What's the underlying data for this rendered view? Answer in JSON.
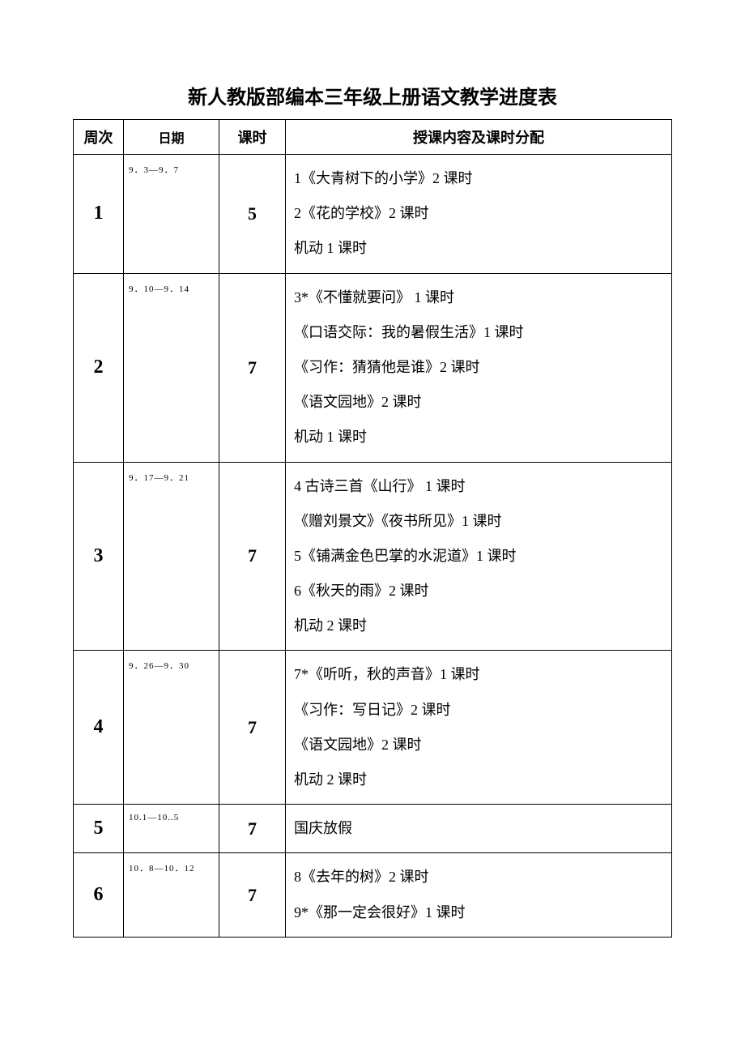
{
  "title": "新人教版部编本三年级上册语文教学进度表",
  "columns": {
    "week": "周次",
    "date": "日期",
    "hours": "课时",
    "content": "授课内容及课时分配"
  },
  "column_widths": {
    "week": 62,
    "date": 118,
    "hours": 82
  },
  "colors": {
    "background": "#ffffff",
    "border": "#000000",
    "text": "#000000"
  },
  "typography": {
    "title_fontsize": 24,
    "title_fontfamily": "SimHei",
    "header_fontsize": 18,
    "header_fontfamily": "SimHei",
    "week_fontsize": 24,
    "week_fontfamily": "Times New Roman",
    "date_fontsize": 11,
    "hours_fontsize": 22,
    "hours_fontfamily": "Times New Roman",
    "content_fontsize": 18,
    "content_line_height": 2.4
  },
  "rows": [
    {
      "week": "1",
      "date": "9．3—9．7",
      "hours": "5",
      "content": [
        "1《大青树下的小学》2 课时",
        "2《花的学校》2 课时",
        "机动 1 课时"
      ]
    },
    {
      "week": "2",
      "date": "9．10—9．14",
      "hours": "7",
      "content": [
        "3*《不懂就要问》  1 课时",
        "《口语交际：我的暑假生活》1 课时",
        "《习作：猜猜他是谁》2 课时",
        "《语文园地》2 课时",
        "机动 1 课时"
      ]
    },
    {
      "week": "3",
      "date": "9．17—9．21",
      "hours": "7",
      "content": [
        "4 古诗三首《山行》  1 课时",
        "《赠刘景文》《夜书所见》1 课时",
        "5《铺满金色巴掌的水泥道》1 课时",
        "6《秋天的雨》2 课时",
        "机动 2 课时"
      ]
    },
    {
      "week": "4",
      "date": "9．26—9．30",
      "hours": "7",
      "content": [
        "7*《听听，秋的声音》1 课时",
        "《习作：写日记》2 课时",
        "《语文园地》2 课时",
        "机动 2 课时"
      ]
    },
    {
      "week": "5",
      "date": "10.1—10..5",
      "hours": "7",
      "content": [
        "国庆放假"
      ]
    },
    {
      "week": "6",
      "date": "10．8—10．12",
      "hours": "7",
      "content": [
        "8《去年的树》2 课时",
        "9*《那一定会很好》1 课时"
      ]
    }
  ]
}
